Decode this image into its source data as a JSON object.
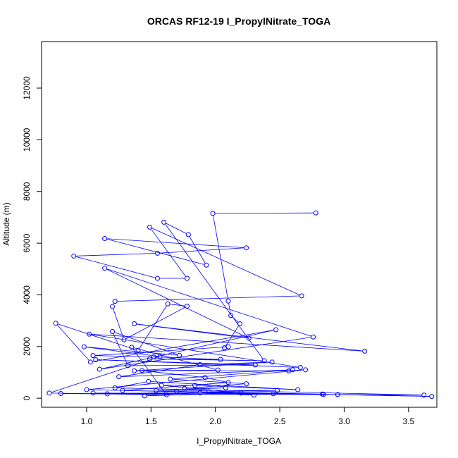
{
  "chart_data": {
    "type": "line",
    "title": "ORCAS RF12-19 I_PropylNitrate_TOGA",
    "xlabel": "I_PropylNitrate_TOGA",
    "ylabel": "Altitude (m)",
    "xlim": [
      0.65,
      3.72
    ],
    "ylim": [
      -350,
      13800
    ],
    "xticks": [
      1.0,
      1.5,
      2.0,
      2.5,
      3.0,
      3.5
    ],
    "xtick_labels": [
      "1.0",
      "1.5",
      "2.0",
      "2.5",
      "3.0",
      "3.5"
    ],
    "yticks": [
      0,
      2000,
      4000,
      6000,
      8000,
      10000,
      12000
    ],
    "ytick_labels": [
      "0",
      "2000",
      "4000",
      "6000",
      "8000",
      "10000",
      "12000"
    ],
    "grid": false,
    "legend": "none",
    "series_color": "#0000ff",
    "series": [
      {
        "points": [
          [
            2.78,
            7170
          ],
          [
            1.98,
            7150
          ],
          [
            2.1,
            3760
          ],
          [
            2.12,
            3200
          ],
          [
            2.19,
            2880
          ],
          [
            2.07,
            1950
          ],
          [
            2.1,
            1990
          ],
          [
            1.05,
            1650
          ],
          [
            1.52,
            1600
          ],
          [
            2.04,
            1500
          ],
          [
            1.49,
            1520
          ],
          [
            2.38,
            1450
          ],
          [
            1.6,
            6810
          ],
          [
            1.79,
            6330
          ],
          [
            1.93,
            5150
          ],
          [
            1.14,
            6180
          ],
          [
            2.24,
            5820
          ],
          [
            1.55,
            5610
          ],
          [
            0.9,
            5500
          ],
          [
            1.55,
            4640
          ],
          [
            1.78,
            4640
          ],
          [
            1.49,
            6620
          ],
          [
            2.67,
            3960
          ],
          [
            1.22,
            3750
          ],
          [
            1.2,
            3550
          ],
          [
            1.29,
            2260
          ],
          [
            1.78,
            3560
          ],
          [
            1.63,
            3650
          ],
          [
            1.4,
            1850
          ],
          [
            0.76,
            2900
          ],
          [
            1.03,
            1400
          ],
          [
            2.47,
            2650
          ],
          [
            1.1,
            1120
          ],
          [
            2.76,
            2370
          ],
          [
            1.14,
            5030
          ],
          [
            2.26,
            2320
          ],
          [
            1.37,
            2880
          ],
          [
            3.16,
            1820
          ],
          [
            1.02,
            2480
          ],
          [
            2.66,
            1190
          ],
          [
            1.07,
            1490
          ],
          [
            2.31,
            1290
          ],
          [
            1.32,
            1260
          ],
          [
            1.2,
            2580
          ],
          [
            1.72,
            1660
          ],
          [
            0.98,
            1990
          ],
          [
            1.57,
            1610
          ],
          [
            0.71,
            200
          ],
          [
            1.62,
            130
          ],
          [
            1.35,
            1970
          ],
          [
            2.02,
            1090
          ],
          [
            1.37,
            1060
          ],
          [
            2.44,
            1400
          ],
          [
            1.88,
            1300
          ],
          [
            1.25,
            830
          ],
          [
            2.6,
            1100
          ],
          [
            1.65,
            740
          ],
          [
            2.24,
            560
          ],
          [
            1.76,
            380
          ],
          [
            2.08,
            400
          ],
          [
            1.54,
            300
          ],
          [
            2.48,
            300
          ],
          [
            1.16,
            170
          ],
          [
            2.83,
            160
          ],
          [
            1.95,
            250
          ],
          [
            1.45,
            90
          ],
          [
            2.2,
            200
          ],
          [
            1.58,
            500
          ],
          [
            1.84,
            500
          ],
          [
            2.64,
            330
          ],
          [
            1.48,
            650
          ],
          [
            1.22,
            400
          ],
          [
            3.62,
            120
          ],
          [
            1.05,
            200
          ],
          [
            2.95,
            140
          ],
          [
            0.8,
            180
          ],
          [
            2.84,
            150
          ],
          [
            1.7,
            260
          ],
          [
            3.68,
            70
          ],
          [
            1.28,
            300
          ],
          [
            2.1,
            610
          ],
          [
            1.92,
            800
          ],
          [
            1.43,
            1070
          ],
          [
            2.57,
            1060
          ],
          [
            2.7,
            1100
          ],
          [
            1.0,
            330
          ],
          [
            2.45,
            170
          ],
          [
            1.88,
            210
          ],
          [
            2.3,
            120
          ]
        ]
      }
    ]
  }
}
